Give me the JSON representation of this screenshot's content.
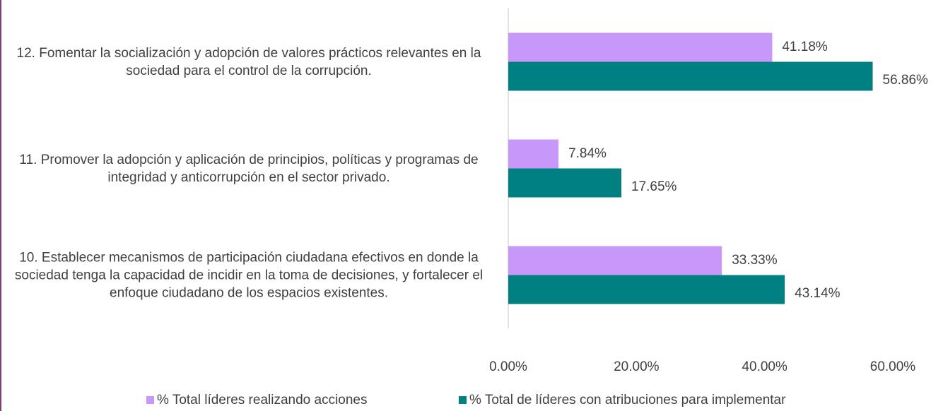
{
  "chart_data": {
    "type": "hbar",
    "categories": [
      "12. Fomentar la socialización y adopción de valores prácticos relevantes en la sociedad para el control de la corrupción.",
      "11. Promover la adopción y aplicación de principios, políticas y programas de integridad y anticorrupción en el sector privado.",
      "10. Establecer mecanismos de participación ciudadana efectivos en donde la sociedad tenga la capacidad de incidir en la toma de decisiones, y fortalecer el enfoque ciudadano de los espacios existentes."
    ],
    "series": [
      {
        "name": "% Total líderes realizando acciones",
        "color": "#c797f9",
        "values": [
          41.18,
          7.84,
          33.33
        ],
        "value_labels": [
          "41.18%",
          "7.84%",
          "33.33%"
        ]
      },
      {
        "name": "% Total de líderes con atribuciones para implementar",
        "color": "#008080",
        "values": [
          56.86,
          17.65,
          43.14
        ],
        "value_labels": [
          "56.86%",
          "17.65%",
          "43.14%"
        ]
      }
    ],
    "xlim": [
      0,
      60
    ],
    "xticks": [
      {
        "value": 0,
        "label": "0.00%"
      },
      {
        "value": 20,
        "label": "20.00%"
      },
      {
        "value": 40,
        "label": "40.00%"
      },
      {
        "value": 60,
        "label": "60.00%"
      }
    ],
    "legend": "bottom"
  }
}
